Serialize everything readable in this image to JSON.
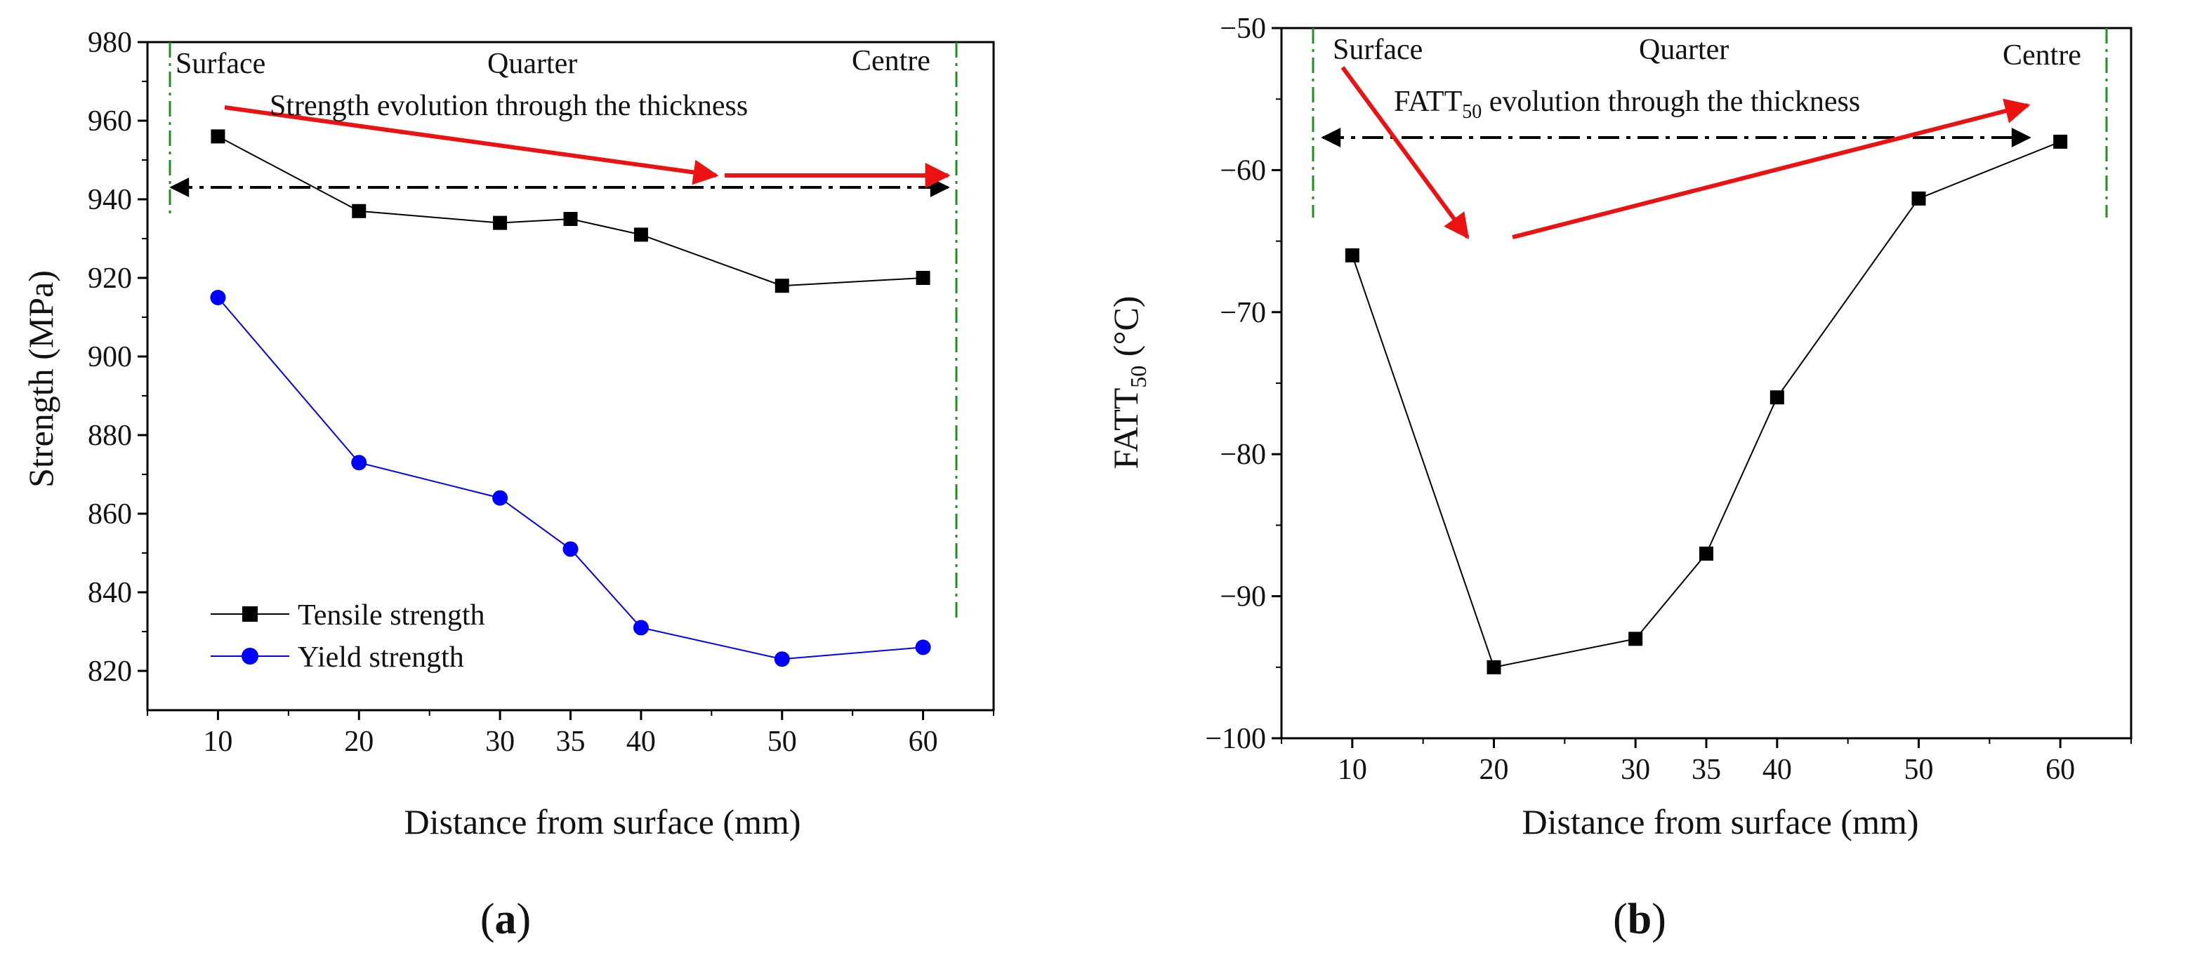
{
  "chart_data": [
    {
      "panel": "a",
      "type": "line",
      "panel_label_open": "(",
      "panel_label_letter": "a",
      "panel_label_close": ")",
      "xlabel": "Distance from surface (mm)",
      "ylabel": "Strength (MPa)",
      "xlim": [
        5,
        65
      ],
      "ylim": [
        810,
        980
      ],
      "x_ticks": [
        10,
        20,
        30,
        35,
        40,
        50,
        60
      ],
      "y_ticks": [
        820,
        840,
        860,
        880,
        900,
        920,
        940,
        960,
        980
      ],
      "series": [
        {
          "name": "Tensile strength",
          "marker": "square",
          "color": "#000000",
          "x": [
            10,
            20,
            30,
            35,
            40,
            50,
            60
          ],
          "y": [
            956,
            937,
            934,
            935,
            931,
            918,
            920
          ]
        },
        {
          "name": "Yield strength",
          "marker": "circle",
          "color": "#0000ff",
          "x": [
            10,
            20,
            30,
            35,
            40,
            50,
            60
          ],
          "y": [
            915,
            873,
            864,
            851,
            831,
            823,
            826
          ]
        }
      ],
      "annotations": {
        "surface": "Surface",
        "quarter": "Quarter",
        "centre": "Centre",
        "evolution": "Strength evolution through the thickness"
      },
      "colors": {
        "arrow": "#ee1111",
        "guide": "#1f8f1f",
        "dashdot": "#000000"
      }
    },
    {
      "panel": "b",
      "type": "line",
      "panel_label_open": "(",
      "panel_label_letter": "b",
      "panel_label_close": ")",
      "xlabel": "Distance from surface (mm)",
      "ylabel_main": "FATT",
      "ylabel_sub": "50",
      "ylabel_unit": " (°C)",
      "xlim": [
        5,
        65
      ],
      "ylim": [
        -100,
        -50
      ],
      "x_ticks": [
        10,
        20,
        30,
        35,
        40,
        50,
        60
      ],
      "y_ticks": [
        -100,
        -90,
        -80,
        -70,
        -60,
        -50
      ],
      "y_tick_labels": [
        "−100",
        "−90",
        "−80",
        "−70",
        "−60",
        "−50"
      ],
      "series": [
        {
          "name": "FATT50",
          "marker": "square",
          "color": "#000000",
          "x": [
            10,
            20,
            30,
            35,
            40,
            50,
            60
          ],
          "y": [
            -66,
            -95,
            -93,
            -87,
            -76,
            -62,
            -58
          ]
        }
      ],
      "annotations": {
        "surface": "Surface",
        "quarter": "Quarter",
        "centre": "Centre",
        "evolution_main": "FATT",
        "evolution_sub": "50",
        "evolution_rest": " evolution through the thickness"
      },
      "colors": {
        "arrow": "#ee1111",
        "guide": "#1f8f1f",
        "dashdot": "#000000"
      }
    }
  ]
}
